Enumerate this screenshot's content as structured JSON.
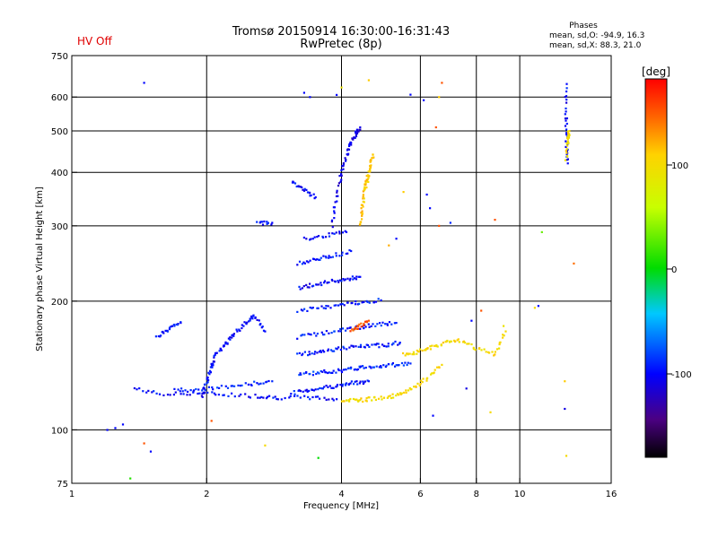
{
  "header": {
    "status": "HV Off",
    "status_color": "#e00000",
    "title_line1": "Tromsø 20150914 16:30:00-16:31:43",
    "title_line2": "RwPretec (8p)"
  },
  "phases": {
    "heading": "Phases",
    "line_o": "mean, sd,O: -94.9, 16.3",
    "line_x": "mean, sd,X:  88.3, 21.0"
  },
  "colorbar": {
    "label": "[deg]",
    "ticks": [
      "100",
      "0",
      "-100"
    ],
    "range": [
      -180,
      180
    ]
  },
  "chart_data": {
    "type": "scatter",
    "xlabel": "Frequency [MHz]",
    "ylabel": "Stationary phase Virtual Height [km]",
    "x_scale": "log",
    "y_scale": "log",
    "xlim": [
      1,
      16
    ],
    "ylim": [
      75,
      750
    ],
    "grid": true,
    "x_ticks": [
      1,
      2,
      4,
      6,
      8,
      10,
      16
    ],
    "x_tick_labels": [
      "1",
      "2",
      "4",
      "6",
      "8",
      "10",
      "16"
    ],
    "x_gridlines": [
      1,
      2,
      4,
      6,
      8,
      10
    ],
    "y_ticks": [
      75,
      100,
      200,
      300,
      400,
      500,
      600,
      750
    ],
    "y_tick_labels": [
      "75",
      "100",
      "200",
      "300",
      "400",
      "500",
      "600",
      "750"
    ],
    "y_gridlines": [
      100,
      200,
      300,
      400,
      500,
      600
    ],
    "traces": [
      {
        "x": [
          1.38,
          1.6,
          1.9,
          2.2,
          2.6,
          2.9,
          3.4,
          3.9
        ],
        "h": [
          125,
          121,
          122,
          121,
          120,
          119,
          119,
          118
        ],
        "phase": -100
      },
      {
        "x": [
          1.7,
          1.9,
          2.2,
          2.5,
          2.8
        ],
        "h": [
          124,
          124,
          126,
          128,
          130
        ],
        "phase": -90
      },
      {
        "x": [
          3.1,
          3.4,
          3.7,
          4.0,
          4.3,
          4.6
        ],
        "h": [
          122,
          124,
          126,
          127,
          129,
          130
        ],
        "phase": -95
      },
      {
        "x": [
          3.2,
          3.5,
          3.8,
          4.1,
          4.4,
          4.8,
          5.2,
          5.7
        ],
        "h": [
          135,
          136,
          137,
          138,
          140,
          141,
          142,
          143
        ],
        "phase": -90
      },
      {
        "x": [
          3.2,
          3.5,
          3.8,
          4.2,
          4.6,
          5.0,
          5.4
        ],
        "h": [
          150,
          152,
          154,
          156,
          157,
          158,
          160
        ],
        "phase": -95
      },
      {
        "x": [
          3.2,
          3.6,
          4.0,
          4.4,
          4.8,
          5.3
        ],
        "h": [
          165,
          168,
          171,
          174,
          176,
          178
        ],
        "phase": -92
      },
      {
        "x": [
          3.2,
          3.6,
          4.0,
          4.4,
          4.9
        ],
        "h": [
          190,
          193,
          196,
          199,
          201
        ],
        "phase": -95
      },
      {
        "x": [
          3.2,
          3.5,
          3.8,
          4.1,
          4.4
        ],
        "h": [
          215,
          219,
          222,
          225,
          228
        ],
        "phase": -100
      },
      {
        "x": [
          3.2,
          3.5,
          3.8,
          4.2
        ],
        "h": [
          245,
          250,
          255,
          262
        ],
        "phase": -95
      },
      {
        "x": [
          3.3,
          3.7,
          4.1
        ],
        "h": [
          280,
          285,
          290
        ],
        "phase": -100
      },
      {
        "x": [
          2.6,
          2.8
        ],
        "h": [
          305,
          305
        ],
        "phase": -100
      },
      {
        "x": [
          3.1,
          3.3,
          3.5
        ],
        "h": [
          380,
          365,
          350
        ],
        "phase": -100
      },
      {
        "x": [
          3.8,
          3.9,
          4.0,
          4.1,
          4.2,
          4.3,
          4.4
        ],
        "h": [
          300,
          350,
          400,
          440,
          470,
          490,
          510
        ],
        "phase": -110
      },
      {
        "x": [
          4.4,
          4.45,
          4.5,
          4.55,
          4.6,
          4.65,
          4.7
        ],
        "h": [
          300,
          330,
          360,
          380,
          400,
          420,
          440
        ],
        "phase": 110
      },
      {
        "x": [
          4.0,
          4.3,
          4.6,
          5.0,
          5.4,
          5.8,
          6.2,
          6.7
        ],
        "h": [
          117,
          117,
          118,
          119,
          121,
          125,
          132,
          142
        ],
        "phase": 100
      },
      {
        "x": [
          5.5,
          5.9,
          6.3,
          6.8,
          7.3,
          8.0,
          8.8,
          9.3
        ],
        "h": [
          150,
          152,
          155,
          160,
          162,
          155,
          150,
          170
        ],
        "phase": 100
      },
      {
        "x": [
          4.2,
          4.4,
          4.6
        ],
        "h": [
          170,
          175,
          180
        ],
        "phase": 150
      },
      {
        "x": [
          1.95,
          2.0,
          2.05,
          2.1,
          2.2,
          2.3,
          2.45,
          2.55,
          2.7
        ],
        "h": [
          120,
          130,
          140,
          150,
          158,
          168,
          178,
          185,
          170
        ],
        "phase": -100
      },
      {
        "x": [
          1.55,
          1.65,
          1.75
        ],
        "h": [
          165,
          172,
          178
        ],
        "phase": -100
      },
      {
        "x": [
          12.7,
          12.7,
          12.7,
          12.8
        ],
        "h": [
          640,
          540,
          470,
          420
        ],
        "phase": -100
      },
      {
        "x": [
          12.7,
          12.8,
          12.9
        ],
        "h": [
          430,
          480,
          500
        ],
        "phase": 100
      }
    ],
    "points": [
      {
        "x": 1.45,
        "h": 648,
        "phase": -100
      },
      {
        "x": 1.2,
        "h": 100,
        "phase": -100
      },
      {
        "x": 1.25,
        "h": 101,
        "phase": -100
      },
      {
        "x": 1.3,
        "h": 103,
        "phase": -100
      },
      {
        "x": 1.35,
        "h": 77,
        "phase": 10
      },
      {
        "x": 1.45,
        "h": 93,
        "phase": 150
      },
      {
        "x": 1.5,
        "h": 89,
        "phase": -100
      },
      {
        "x": 2.05,
        "h": 105,
        "phase": 150
      },
      {
        "x": 2.7,
        "h": 92,
        "phase": 100
      },
      {
        "x": 3.3,
        "h": 614,
        "phase": -100
      },
      {
        "x": 3.4,
        "h": 600,
        "phase": -100
      },
      {
        "x": 3.9,
        "h": 607,
        "phase": -100
      },
      {
        "x": 4.0,
        "h": 632,
        "phase": 90
      },
      {
        "x": 4.6,
        "h": 657,
        "phase": 110
      },
      {
        "x": 5.7,
        "h": 608,
        "phase": -100
      },
      {
        "x": 6.1,
        "h": 590,
        "phase": -100
      },
      {
        "x": 6.7,
        "h": 648,
        "phase": 150
      },
      {
        "x": 6.6,
        "h": 600,
        "phase": 110
      },
      {
        "x": 6.5,
        "h": 510,
        "phase": 150
      },
      {
        "x": 6.2,
        "h": 355,
        "phase": -100
      },
      {
        "x": 6.3,
        "h": 330,
        "phase": -100
      },
      {
        "x": 7.0,
        "h": 305,
        "phase": -90
      },
      {
        "x": 6.6,
        "h": 300,
        "phase": 150
      },
      {
        "x": 5.3,
        "h": 280,
        "phase": -100
      },
      {
        "x": 5.5,
        "h": 360,
        "phase": 110
      },
      {
        "x": 8.8,
        "h": 310,
        "phase": 150
      },
      {
        "x": 3.55,
        "h": 86,
        "phase": 0
      },
      {
        "x": 5.1,
        "h": 270,
        "phase": 120
      },
      {
        "x": 7.8,
        "h": 180,
        "phase": -100
      },
      {
        "x": 8.2,
        "h": 190,
        "phase": 150
      },
      {
        "x": 11.0,
        "h": 195,
        "phase": -100
      },
      {
        "x": 10.8,
        "h": 193,
        "phase": 100
      },
      {
        "x": 13.2,
        "h": 245,
        "phase": 140
      },
      {
        "x": 12.6,
        "h": 130,
        "phase": 110
      },
      {
        "x": 12.7,
        "h": 87,
        "phase": 100
      },
      {
        "x": 12.6,
        "h": 112,
        "phase": -110
      },
      {
        "x": 9.2,
        "h": 175,
        "phase": 90
      },
      {
        "x": 8.6,
        "h": 110,
        "phase": 100
      },
      {
        "x": 7.6,
        "h": 125,
        "phase": -110
      },
      {
        "x": 6.4,
        "h": 108,
        "phase": -100
      },
      {
        "x": 11.2,
        "h": 290,
        "phase": 30
      }
    ]
  }
}
